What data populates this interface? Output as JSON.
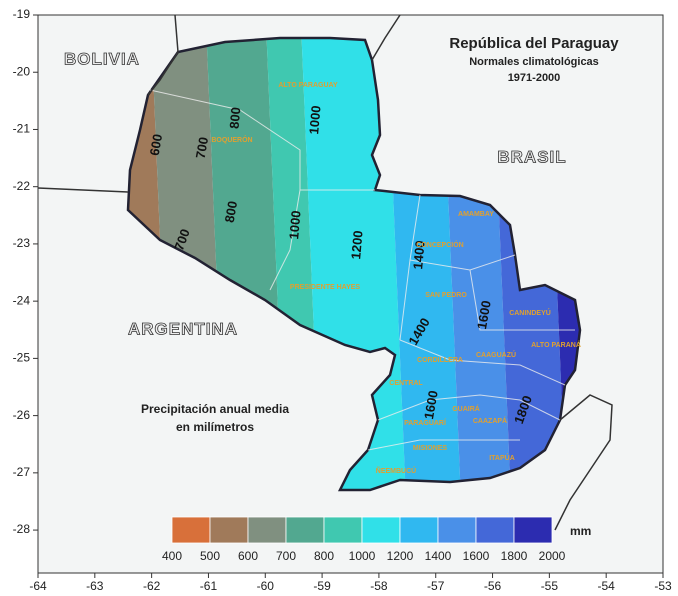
{
  "header": {
    "title": "República del Paraguay",
    "subtitle": "Normales climatológicas",
    "period": "1971-2000"
  },
  "countries": [
    "BOLIVIA",
    "BRASIL",
    "ARGENTINA"
  ],
  "caption": [
    "Precipitación anual media",
    "en milímetros"
  ],
  "axes": {
    "xlim": [
      -64,
      -53
    ],
    "ylim": [
      -28.75,
      -19
    ],
    "xticks": [
      -64,
      -63,
      -62,
      -61,
      -60,
      -59,
      -58,
      -57,
      -56,
      -55,
      -54,
      -53
    ],
    "yticks": [
      -19,
      -20,
      -21,
      -22,
      -23,
      -24,
      -25,
      -26,
      -27,
      -28
    ]
  },
  "legend": {
    "unit": "mm",
    "breaks": [
      400,
      500,
      600,
      700,
      800,
      1000,
      1200,
      1400,
      1600,
      1800,
      2000
    ],
    "colors": [
      "#d8703a",
      "#a07a5a",
      "#809080",
      "#52a890",
      "#40c8b0",
      "#30e0e8",
      "#30b8f0",
      "#4a90e8",
      "#4468d8",
      "#2c2cb0"
    ]
  },
  "isohyets": [
    600,
    700,
    700,
    800,
    800,
    1000,
    1000,
    1200,
    1400,
    1400,
    1600,
    1600,
    1800
  ],
  "departments": [
    "ALTO PARAGUAY",
    "BOQUERÓN",
    "PRESIDENTE HAYES",
    "CONCEPCIÓN",
    "AMAMBAY",
    "SAN PEDRO",
    "CANINDEYÚ",
    "ALTO PARANÁ",
    "CAAGUAZÚ",
    "CORDILLERA",
    "CENTRAL",
    "PARAGUARÍ",
    "GUAIRÁ",
    "CAAZAPÁ",
    "MISIONES",
    "ITAPÚA",
    "ÑEEMBUCÚ"
  ]
}
